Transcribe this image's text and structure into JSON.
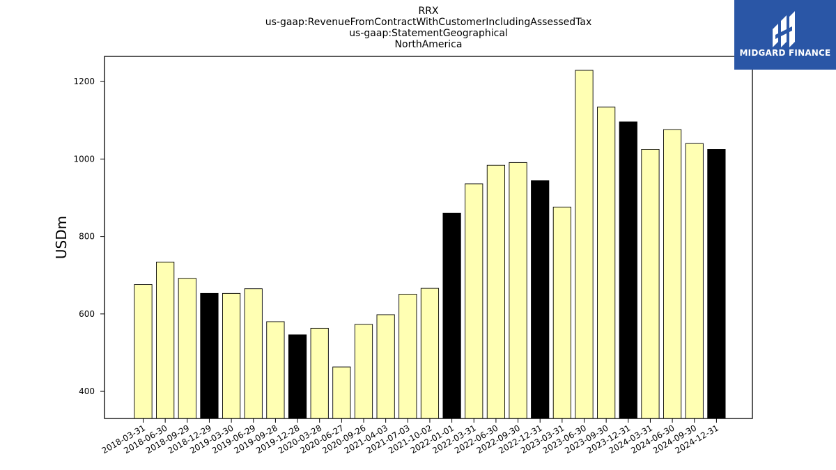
{
  "chart_data": {
    "type": "bar",
    "title_lines": [
      "RRX",
      "us-gaap:RevenueFromContractWithCustomerIncludingAssessedTax",
      "us-gaap:StatementGeographical",
      "NorthAmerica"
    ],
    "xlabel": "",
    "ylabel": "USDm",
    "ylim": [
      330,
      1265
    ],
    "yticks": [
      400,
      600,
      800,
      1000,
      1200
    ],
    "grid": false,
    "categories": [
      "2018-03-31",
      "2018-06-30",
      "2018-09-29",
      "2018-12-29",
      "2019-03-30",
      "2019-06-29",
      "2019-09-28",
      "2019-12-28",
      "2020-03-28",
      "2020-06-27",
      "2020-09-26",
      "2021-04-03",
      "2021-07-03",
      "2021-10-02",
      "2022-01-01",
      "2022-03-31",
      "2022-06-30",
      "2022-09-30",
      "2022-12-31",
      "2023-03-31",
      "2023-06-30",
      "2023-09-30",
      "2023-12-31",
      "2024-03-31",
      "2024-06-30",
      "2024-09-30",
      "2024-12-31"
    ],
    "values": [
      676,
      734,
      692,
      653,
      653,
      665,
      580,
      546,
      563,
      463,
      573,
      598,
      651,
      666,
      860,
      936,
      984,
      991,
      944,
      876,
      1229,
      1134,
      1096,
      1025,
      1076,
      1040,
      1025
    ],
    "highlight": [
      false,
      false,
      false,
      true,
      false,
      false,
      false,
      true,
      false,
      false,
      false,
      false,
      false,
      false,
      true,
      false,
      false,
      false,
      true,
      false,
      false,
      false,
      true,
      false,
      false,
      false,
      true
    ],
    "colors": {
      "normal": "#ffffb3",
      "highlight": "#000000",
      "edge": "#000000"
    }
  },
  "logo": {
    "text": "MIDGARD FINANCE",
    "icon": "midgard-logo-icon",
    "background": "#2a56a6"
  }
}
